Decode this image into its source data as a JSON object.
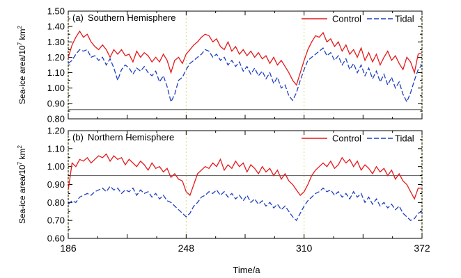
{
  "chart_data": [
    {
      "type": "line",
      "panel_label": "(a)",
      "title": "Southern Hemisphere",
      "ylabel_main": "Sea-ice area/10",
      "ylabel_exp": "7",
      "ylabel_unit": " km",
      "ylabel_unit_exp": "2",
      "ylim": [
        0.8,
        1.5
      ],
      "yticks": [
        "0.80",
        "0.90",
        "1.00",
        "1.10",
        "1.20",
        "1.30",
        "1.40",
        "1.50"
      ],
      "ytick_values": [
        0.8,
        0.9,
        1.0,
        1.1,
        1.2,
        1.3,
        1.4,
        1.5
      ],
      "xlim": [
        186,
        372
      ],
      "reference_line": 0.86,
      "cycle_boundaries": [
        248,
        310,
        372
      ],
      "legend": {
        "placement": "top-right",
        "entries": [
          "Control",
          "Tidal"
        ]
      },
      "series": [
        {
          "name": "Control",
          "color": "#e41a1c",
          "dash": "solid",
          "x": [
            186,
            188,
            190,
            192,
            194,
            196,
            198,
            200,
            202,
            204,
            206,
            208,
            210,
            212,
            214,
            216,
            218,
            220,
            222,
            224,
            226,
            228,
            230,
            232,
            234,
            236,
            238,
            240,
            242,
            244,
            246,
            248,
            250,
            252,
            254,
            256,
            258,
            260,
            262,
            264,
            266,
            268,
            270,
            272,
            274,
            276,
            278,
            280,
            282,
            284,
            286,
            288,
            290,
            292,
            294,
            296,
            298,
            300,
            302,
            304,
            306,
            308,
            310,
            312,
            314,
            316,
            318,
            320,
            322,
            324,
            326,
            328,
            330,
            332,
            334,
            336,
            338,
            340,
            342,
            344,
            346,
            348,
            350,
            352,
            354,
            356,
            358,
            360,
            362,
            364,
            366,
            368,
            370,
            372
          ],
          "y": [
            1.2,
            1.28,
            1.33,
            1.37,
            1.33,
            1.35,
            1.3,
            1.27,
            1.25,
            1.28,
            1.25,
            1.2,
            1.25,
            1.22,
            1.25,
            1.21,
            1.22,
            1.17,
            1.24,
            1.2,
            1.23,
            1.21,
            1.17,
            1.2,
            1.17,
            1.22,
            1.18,
            1.1,
            1.18,
            1.2,
            1.16,
            1.22,
            1.25,
            1.28,
            1.3,
            1.33,
            1.35,
            1.34,
            1.3,
            1.32,
            1.27,
            1.25,
            1.3,
            1.24,
            1.27,
            1.22,
            1.25,
            1.21,
            1.24,
            1.2,
            1.23,
            1.19,
            1.21,
            1.16,
            1.2,
            1.15,
            1.18,
            1.14,
            1.1,
            1.05,
            1.02,
            1.1,
            1.18,
            1.25,
            1.3,
            1.34,
            1.33,
            1.36,
            1.3,
            1.32,
            1.27,
            1.3,
            1.24,
            1.28,
            1.22,
            1.25,
            1.2,
            1.26,
            1.18,
            1.23,
            1.17,
            1.22,
            1.15,
            1.2,
            1.24,
            1.18,
            1.21,
            1.16,
            1.12,
            1.2,
            1.17,
            1.1,
            1.22,
            1.23
          ]
        },
        {
          "name": "Tidal",
          "color": "#1f3fbf",
          "dash": "dashed",
          "x": [
            186,
            188,
            190,
            192,
            194,
            196,
            198,
            200,
            202,
            204,
            206,
            208,
            210,
            212,
            214,
            216,
            218,
            220,
            222,
            224,
            226,
            228,
            230,
            232,
            234,
            236,
            238,
            240,
            242,
            244,
            246,
            248,
            250,
            252,
            254,
            256,
            258,
            260,
            262,
            264,
            266,
            268,
            270,
            272,
            274,
            276,
            278,
            280,
            282,
            284,
            286,
            288,
            290,
            292,
            294,
            296,
            298,
            300,
            302,
            304,
            306,
            308,
            310,
            312,
            314,
            316,
            318,
            320,
            322,
            324,
            326,
            328,
            330,
            332,
            334,
            336,
            338,
            340,
            342,
            344,
            346,
            348,
            350,
            352,
            354,
            356,
            358,
            360,
            362,
            364,
            366,
            368,
            370,
            372
          ],
          "y": [
            1.16,
            1.18,
            1.22,
            1.25,
            1.24,
            1.25,
            1.2,
            1.21,
            1.18,
            1.2,
            1.15,
            1.19,
            1.13,
            1.05,
            1.12,
            1.15,
            1.13,
            1.09,
            1.13,
            1.11,
            1.14,
            1.1,
            1.08,
            1.11,
            1.04,
            1.08,
            1.01,
            0.91,
            0.96,
            1.05,
            1.07,
            1.12,
            1.16,
            1.18,
            1.2,
            1.22,
            1.25,
            1.24,
            1.2,
            1.22,
            1.18,
            1.2,
            1.15,
            1.18,
            1.14,
            1.17,
            1.11,
            1.14,
            1.09,
            1.13,
            1.08,
            1.11,
            1.06,
            1.1,
            1.03,
            1.07,
            1.0,
            1.02,
            0.95,
            0.92,
            0.97,
            1.05,
            1.12,
            1.18,
            1.2,
            1.22,
            1.24,
            1.26,
            1.21,
            1.23,
            1.18,
            1.21,
            1.15,
            1.19,
            1.12,
            1.16,
            1.1,
            1.15,
            1.08,
            1.13,
            1.06,
            1.11,
            1.04,
            1.09,
            1.02,
            1.07,
            1.0,
            1.04,
            0.96,
            0.91,
            0.97,
            1.05,
            1.12,
            1.15
          ]
        }
      ]
    },
    {
      "type": "line",
      "panel_label": "(b)",
      "title": "Northern Hemisphere",
      "ylabel_main": "Sea-ice area/10",
      "ylabel_exp": "7",
      "ylabel_unit": " km",
      "ylabel_unit_exp": "2",
      "ylim": [
        0.6,
        1.2
      ],
      "yticks": [
        "0.60",
        "0.70",
        "0.80",
        "0.90",
        "1.00",
        "1.10",
        "1.20"
      ],
      "ytick_values": [
        0.6,
        0.7,
        0.8,
        0.9,
        1.0,
        1.1,
        1.2
      ],
      "xlim": [
        186,
        372
      ],
      "xticks": [
        "186",
        "248",
        "310",
        "372"
      ],
      "xtick_values": [
        186,
        248,
        310,
        372
      ],
      "xlabel": "Time/a",
      "reference_line": 0.95,
      "cycle_boundaries": [
        248,
        310,
        372
      ],
      "legend": {
        "placement": "top-right",
        "entries": [
          "Control",
          "Tidal"
        ]
      },
      "series": [
        {
          "name": "Control",
          "color": "#e41a1c",
          "dash": "solid",
          "x": [
            186,
            188,
            190,
            192,
            194,
            196,
            198,
            200,
            202,
            204,
            206,
            208,
            210,
            212,
            214,
            216,
            218,
            220,
            222,
            224,
            226,
            228,
            230,
            232,
            234,
            236,
            238,
            240,
            242,
            244,
            246,
            248,
            250,
            252,
            254,
            256,
            258,
            260,
            262,
            264,
            266,
            268,
            270,
            272,
            274,
            276,
            278,
            280,
            282,
            284,
            286,
            288,
            290,
            292,
            294,
            296,
            298,
            300,
            302,
            304,
            306,
            308,
            310,
            312,
            314,
            316,
            318,
            320,
            322,
            324,
            326,
            328,
            330,
            332,
            334,
            336,
            338,
            340,
            342,
            344,
            346,
            348,
            350,
            352,
            354,
            356,
            358,
            360,
            362,
            364,
            366,
            368,
            370,
            372
          ],
          "y": [
            0.87,
            1.02,
            1.0,
            1.04,
            1.03,
            1.05,
            1.02,
            1.04,
            1.06,
            1.05,
            1.07,
            1.03,
            1.06,
            1.04,
            1.05,
            1.01,
            1.04,
            1.02,
            1.0,
            1.03,
            1.01,
            0.98,
            1.02,
            0.99,
            1.0,
            0.97,
            0.99,
            0.94,
            0.96,
            0.93,
            0.92,
            0.86,
            0.84,
            0.9,
            0.96,
            0.98,
            1.0,
            0.99,
            1.02,
            1.0,
            1.04,
            0.98,
            1.01,
            0.99,
            1.03,
            1.0,
            1.02,
            0.97,
            1.01,
            0.99,
            0.96,
            1.0,
            0.97,
            0.99,
            0.95,
            0.98,
            0.93,
            0.96,
            0.92,
            0.9,
            0.87,
            0.84,
            0.86,
            0.9,
            0.95,
            0.98,
            1.0,
            1.02,
            1.0,
            1.03,
            0.99,
            1.01,
            1.05,
            1.02,
            1.04,
            1.0,
            1.03,
            0.98,
            1.01,
            0.99,
            0.96,
            1.0,
            0.97,
            0.99,
            0.95,
            0.98,
            0.93,
            0.96,
            0.92,
            0.9,
            0.86,
            0.82,
            0.88,
            0.88
          ]
        },
        {
          "name": "Tidal",
          "color": "#1f3fbf",
          "dash": "dashed",
          "x": [
            186,
            188,
            190,
            192,
            194,
            196,
            198,
            200,
            202,
            204,
            206,
            208,
            210,
            212,
            214,
            216,
            218,
            220,
            222,
            224,
            226,
            228,
            230,
            232,
            234,
            236,
            238,
            240,
            242,
            244,
            246,
            248,
            250,
            252,
            254,
            256,
            258,
            260,
            262,
            264,
            266,
            268,
            270,
            272,
            274,
            276,
            278,
            280,
            282,
            284,
            286,
            288,
            290,
            292,
            294,
            296,
            298,
            300,
            302,
            304,
            306,
            308,
            310,
            312,
            314,
            316,
            318,
            320,
            322,
            324,
            326,
            328,
            330,
            332,
            334,
            336,
            338,
            340,
            342,
            344,
            346,
            348,
            350,
            352,
            354,
            356,
            358,
            360,
            362,
            364,
            366,
            368,
            370,
            372
          ],
          "y": [
            0.79,
            0.81,
            0.8,
            0.83,
            0.84,
            0.85,
            0.84,
            0.86,
            0.87,
            0.88,
            0.86,
            0.89,
            0.87,
            0.88,
            0.85,
            0.87,
            0.86,
            0.88,
            0.84,
            0.87,
            0.85,
            0.86,
            0.83,
            0.85,
            0.82,
            0.84,
            0.81,
            0.8,
            0.78,
            0.76,
            0.74,
            0.72,
            0.74,
            0.78,
            0.8,
            0.83,
            0.84,
            0.86,
            0.85,
            0.87,
            0.84,
            0.86,
            0.83,
            0.85,
            0.82,
            0.84,
            0.81,
            0.84,
            0.8,
            0.82,
            0.79,
            0.81,
            0.78,
            0.8,
            0.77,
            0.79,
            0.76,
            0.78,
            0.75,
            0.72,
            0.7,
            0.74,
            0.78,
            0.81,
            0.83,
            0.85,
            0.86,
            0.88,
            0.86,
            0.87,
            0.84,
            0.86,
            0.83,
            0.85,
            0.82,
            0.86,
            0.83,
            0.85,
            0.8,
            0.83,
            0.79,
            0.82,
            0.78,
            0.8,
            0.77,
            0.79,
            0.76,
            0.78,
            0.74,
            0.72,
            0.7,
            0.71,
            0.74,
            0.75
          ]
        }
      ]
    }
  ]
}
